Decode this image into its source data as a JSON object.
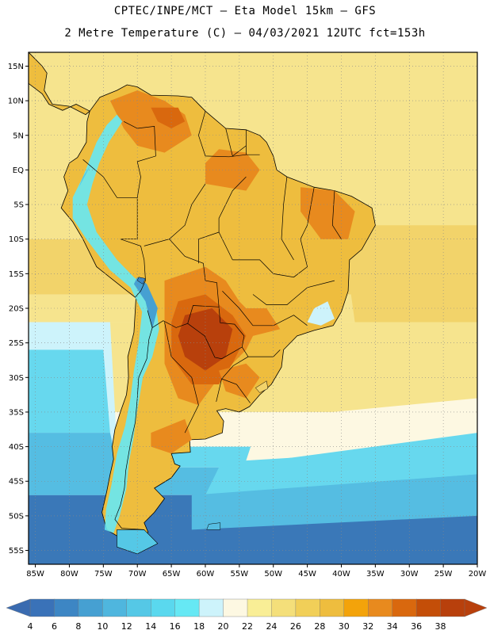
{
  "header": {
    "line1": "CPTEC/INPE/MCT –  Eta Model 15km – GFS",
    "line2": "2 Metre Temperature (C) – 04/03/2021 12UTC fct=153h"
  },
  "map": {
    "lat_labels": [
      "15N",
      "10N",
      "5N",
      "EQ",
      "5S",
      "10S",
      "15S",
      "20S",
      "25S",
      "30S",
      "35S",
      "40S",
      "45S",
      "50S",
      "55S"
    ],
    "lon_labels": [
      "85W",
      "80W",
      "75W",
      "70W",
      "65W",
      "60W",
      "55W",
      "50W",
      "45W",
      "40W",
      "35W",
      "30W",
      "25W",
      "20W"
    ],
    "grid": "dotted",
    "bounds": {
      "lon_min": -86,
      "lon_max": -20,
      "lat_min": -57,
      "lat_max": 17
    }
  },
  "colorbar": {
    "labels": [
      "4",
      "6",
      "8",
      "10",
      "12",
      "14",
      "16",
      "18",
      "20",
      "22",
      "24",
      "26",
      "28",
      "30",
      "32",
      "34",
      "36",
      "38"
    ],
    "colors": [
      "#3a72b8",
      "#3d86c4",
      "#46a0d2",
      "#4fb6de",
      "#55c8e6",
      "#5ad8ee",
      "#66e8f4",
      "#cdf3fb",
      "#fdf8e2",
      "#f9ee96",
      "#f4df7a",
      "#f1cf58",
      "#eebd3e",
      "#f3a30a",
      "#e88a1e",
      "#d9680e",
      "#c44e08",
      "#b8400c"
    ],
    "low_arrow_color": "#3a6bb0",
    "high_arrow_color": "#b8400c"
  },
  "field_colors": {
    "ocean_deep": "#3a78b8",
    "ocean_mid": "#55bde2",
    "ocean_cool": "#67d8ee",
    "ocean_pale": "#cdf3fb",
    "ocean_cream": "#fdf8e2",
    "ocean_yellow": "#f6e48e",
    "ocean_warm": "#f2d36a",
    "land_warm": "#eebd3e",
    "land_hot": "#e88a1e",
    "land_hotter": "#d9680e",
    "land_hottest": "#b8400c",
    "andes": "#66e8f4"
  }
}
